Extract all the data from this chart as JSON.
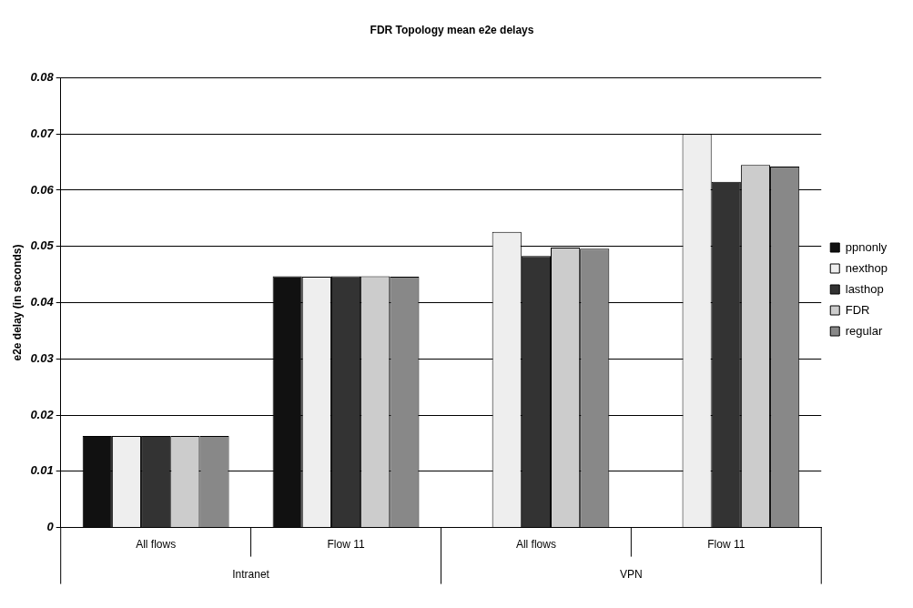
{
  "chart_data": {
    "type": "bar",
    "title": "FDR Topology mean e2e delays",
    "ylabel": "e2e delay (in seconds)",
    "categories": [
      "All flows",
      "Flow 11",
      "All flows",
      "Flow 11"
    ],
    "annotations": [
      "Intranet",
      "VPN"
    ],
    "series": [
      {
        "name": "ppnonly",
        "color": "#111111",
        "values": [
          0.0163,
          0.0447,
          null,
          null
        ]
      },
      {
        "name": "nexthop",
        "color": "#eeeeee",
        "values": [
          0.0163,
          0.0446,
          0.0526,
          0.07
        ]
      },
      {
        "name": "lasthop",
        "color": "#333333",
        "values": [
          0.0163,
          0.0447,
          0.0483,
          0.0615
        ]
      },
      {
        "name": "FDR",
        "color": "#cccccc",
        "values": [
          0.0163,
          0.0447,
          0.0498,
          0.0645
        ]
      },
      {
        "name": "regular",
        "color": "#888888",
        "values": [
          0.0163,
          0.0446,
          0.0496,
          0.0642
        ]
      }
    ],
    "ylim": [
      0,
      0.08
    ],
    "yticks": [
      0,
      0.01,
      0.02,
      0.03,
      0.04,
      0.05,
      0.06,
      0.07,
      0.08
    ],
    "grid": "y",
    "legend": "right"
  }
}
